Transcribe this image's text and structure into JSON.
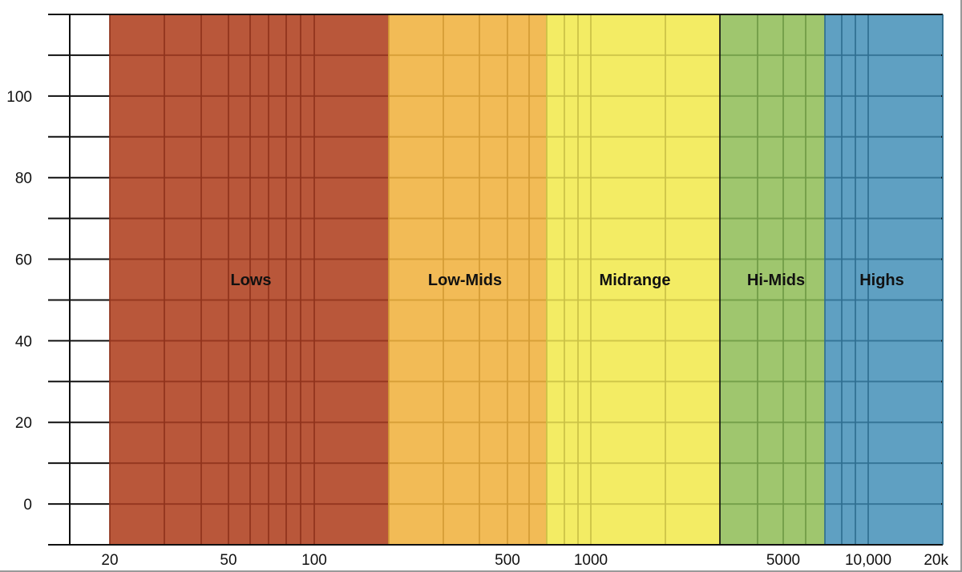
{
  "chart_data": {
    "type": "area",
    "title": "",
    "xlabel": "",
    "ylabel": "",
    "x_scale": "log",
    "xlim": [
      14,
      20000
    ],
    "ylim": [
      -10,
      120
    ],
    "grid": true,
    "x_tick_labels": [
      {
        "value": 20,
        "label": "20"
      },
      {
        "value": 50,
        "label": "50"
      },
      {
        "value": 100,
        "label": "100"
      },
      {
        "value": 500,
        "label": "500"
      },
      {
        "value": 1000,
        "label": "1000"
      },
      {
        "value": 5000,
        "label": "5000"
      },
      {
        "value": 10000,
        "label": "10,000"
      },
      {
        "value": 20000,
        "label": "20k"
      }
    ],
    "y_tick_labels": [
      {
        "value": 0,
        "label": "0"
      },
      {
        "value": 20,
        "label": "20"
      },
      {
        "value": 40,
        "label": "40"
      },
      {
        "value": 60,
        "label": "60"
      },
      {
        "value": 80,
        "label": "80"
      },
      {
        "value": 100,
        "label": "100"
      }
    ],
    "x_gridlines": [
      20,
      30,
      40,
      50,
      60,
      70,
      80,
      90,
      100,
      200,
      300,
      400,
      500,
      600,
      700,
      800,
      900,
      1000,
      2000,
      3000,
      4000,
      5000,
      6000,
      7000,
      8000,
      9000,
      10000,
      20000
    ],
    "y_gridlines": [
      -10,
      0,
      10,
      20,
      30,
      40,
      50,
      60,
      70,
      80,
      90,
      100,
      110,
      120
    ],
    "bands": [
      {
        "name": "Lows",
        "from": 20,
        "to": 200,
        "color": "#b9573a",
        "grid_color": "#8f321c"
      },
      {
        "name": "Low-Mids",
        "from": 200,
        "to": 700,
        "color": "#f2bb56",
        "grid_color": "#d39b34"
      },
      {
        "name": "Midrange",
        "from": 700,
        "to": 3000,
        "color": "#f3ec64",
        "grid_color": "#c9c145"
      },
      {
        "name": "Hi-Mids",
        "from": 3000,
        "to": 7000,
        "color": "#9fc66e",
        "grid_color": "#6f9a45"
      },
      {
        "name": "Highs",
        "from": 7000,
        "to": 20000,
        "color": "#5fa0c2",
        "grid_color": "#2f6f91"
      }
    ]
  }
}
